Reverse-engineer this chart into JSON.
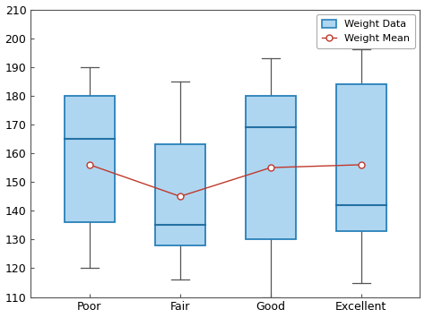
{
  "categories": [
    "Poor",
    "Fair",
    "Good",
    "Excellent"
  ],
  "boxes": [
    {
      "whisker_low": 120,
      "q1": 136,
      "median": 165,
      "q3": 180,
      "whisker_high": 190
    },
    {
      "whisker_low": 116,
      "q1": 128,
      "median": 135,
      "q3": 163,
      "whisker_high": 185
    },
    {
      "whisker_low": 110,
      "q1": 130,
      "median": 169,
      "q3": 180,
      "whisker_high": 193
    },
    {
      "whisker_low": 115,
      "q1": 133,
      "median": 142,
      "q3": 184,
      "whisker_high": 196
    }
  ],
  "means": [
    156,
    145,
    155,
    156
  ],
  "ylim": [
    110,
    210
  ],
  "yticks": [
    110,
    120,
    130,
    140,
    150,
    160,
    170,
    180,
    190,
    200,
    210
  ],
  "box_facecolor": "#aed6f1",
  "box_edgecolor": "#2980b9",
  "whisker_color": "#555555",
  "median_color": "#2471a3",
  "mean_line_color": "#c0392b",
  "mean_marker_facecolor": "#f5cba7",
  "mean_marker_edgecolor": "#c0392b",
  "legend_label_box": "Weight Data",
  "legend_label_mean": "Weight Mean",
  "box_width": 0.55,
  "cap_ratio": 0.35,
  "figsize": [
    4.74,
    3.55
  ],
  "dpi": 100
}
